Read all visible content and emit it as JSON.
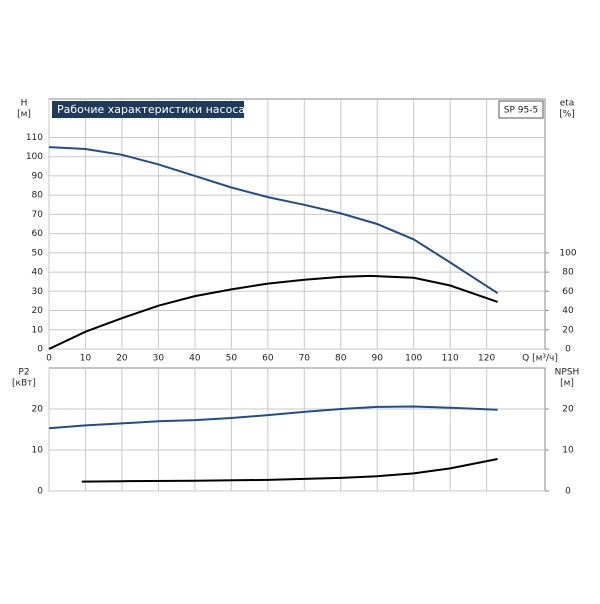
{
  "chart_data": [
    {
      "type": "line",
      "title": "Рабочие характеристики насоса",
      "model": "SP 95-5",
      "x_label": "Q [м³/ч]",
      "y_label": "H",
      "y_unit": "[м]",
      "y2_label": "eta",
      "y2_unit": "[%]",
      "xlim": [
        0,
        136
      ],
      "xticks": [
        0,
        10,
        20,
        30,
        40,
        50,
        60,
        70,
        80,
        90,
        100,
        110,
        120
      ],
      "ylim": [
        0,
        130
      ],
      "yticks": [
        0,
        10,
        20,
        30,
        40,
        50,
        60,
        70,
        80,
        90,
        100,
        110
      ],
      "y2lim": [
        0,
        260
      ],
      "y2ticks": [
        0,
        20,
        40,
        60,
        80,
        100
      ],
      "grid": true,
      "series": [
        {
          "color": "#1f4e8c",
          "x": [
            0,
            10,
            20,
            30,
            40,
            50,
            60,
            70,
            80,
            90,
            100,
            110,
            123
          ],
          "values": [
            105,
            104,
            101,
            96,
            90,
            84,
            79,
            75,
            70.5,
            65,
            57,
            45,
            29
          ]
        },
        {
          "color": "#000000",
          "axis": "y2",
          "x": [
            0,
            10,
            20,
            30,
            40,
            50,
            60,
            70,
            80,
            88,
            100,
            110,
            123
          ],
          "values": [
            0,
            18,
            32,
            45,
            55,
            62,
            68,
            72,
            75,
            76,
            74,
            66,
            49
          ]
        }
      ]
    },
    {
      "type": "line",
      "y_label": "P2",
      "y_unit": "[кВт]",
      "y2_label": "NPSH",
      "y2_unit": "[м]",
      "xlim": [
        0,
        136
      ],
      "xticks": [
        0,
        10,
        20,
        30,
        40,
        50,
        60,
        70,
        80,
        90,
        100,
        110,
        120
      ],
      "ylim": [
        0,
        30
      ],
      "yticks": [
        0,
        10,
        20
      ],
      "y2lim": [
        0,
        30
      ],
      "y2ticks": [
        0,
        10,
        20
      ],
      "grid": true,
      "series": [
        {
          "color": "#1f4e8c",
          "x": [
            0,
            10,
            20,
            30,
            40,
            50,
            60,
            70,
            80,
            90,
            100,
            110,
            123
          ],
          "values": [
            15.3,
            16,
            16.5,
            17,
            17.3,
            17.8,
            18.5,
            19.3,
            20,
            20.5,
            20.6,
            20.3,
            19.8
          ]
        },
        {
          "color": "#000000",
          "axis": "y2",
          "x": [
            9,
            20,
            40,
            60,
            80,
            90,
            100,
            110,
            123
          ],
          "values": [
            2.3,
            2.4,
            2.5,
            2.7,
            3.2,
            3.6,
            4.3,
            5.5,
            7.8
          ]
        }
      ]
    }
  ]
}
